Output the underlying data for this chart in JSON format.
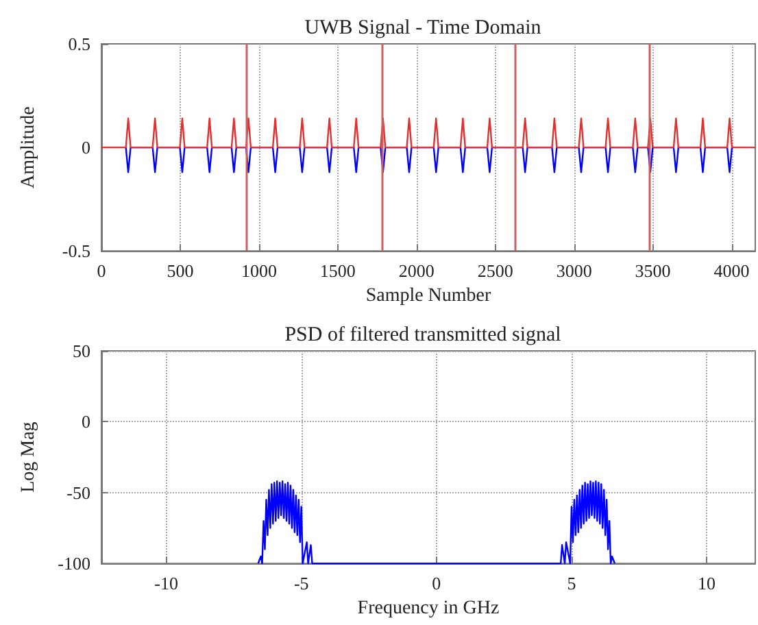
{
  "chart_data": [
    {
      "type": "line",
      "title": "UWB Signal - Time Domain",
      "xlabel": "Sample Number",
      "ylabel": "Amplitude",
      "xlim": [
        0,
        4150
      ],
      "ylim": [
        -0.5,
        0.5
      ],
      "xticks": [
        0,
        500,
        1000,
        1500,
        2000,
        2500,
        3000,
        3500,
        4000
      ],
      "yticks": [
        -0.5,
        0,
        0.5
      ],
      "grid": "x",
      "marker": "none",
      "line_style": "solid",
      "ref_lines": [
        {
          "axis": "x",
          "value": 918,
          "color": "#c86060"
        },
        {
          "axis": "x",
          "value": 1780,
          "color": "#c86060"
        },
        {
          "axis": "x",
          "value": 2624,
          "color": "#c86060"
        },
        {
          "axis": "x",
          "value": 3474,
          "color": "#c86060"
        }
      ],
      "series": [
        {
          "color": "#0000ff",
          "x": [
            155,
            170,
            185,
            325,
            340,
            355,
            498,
            513,
            528,
            671,
            686,
            701,
            826,
            841,
            856,
            918,
            933,
            948,
            1088,
            1103,
            1118,
            1259,
            1274,
            1289,
            1432,
            1447,
            1462,
            1602,
            1617,
            1632,
            1772,
            1787,
            1802,
            1938,
            1953,
            1968,
            2109,
            2124,
            2139,
            2279,
            2294,
            2309,
            2449,
            2464,
            2479,
            2674,
            2689,
            2704,
            2860,
            2875,
            2890,
            3030,
            3045,
            3060,
            3200,
            3215,
            3230,
            3373,
            3388,
            3403,
            3469,
            3484,
            3499,
            3632,
            3647,
            3662,
            3802,
            3817,
            3832,
            3972,
            3987,
            4002
          ],
          "values": [
            0,
            -0.12,
            0,
            0,
            -0.12,
            0,
            0,
            -0.12,
            0,
            0,
            -0.12,
            0,
            0,
            -0.12,
            0,
            0,
            -0.12,
            0,
            0,
            -0.12,
            0,
            0,
            -0.12,
            0,
            0,
            -0.12,
            0,
            0,
            -0.12,
            0,
            0,
            -0.12,
            0,
            0,
            -0.12,
            0,
            0,
            -0.12,
            0,
            0,
            -0.12,
            0,
            0,
            -0.12,
            0,
            0,
            -0.12,
            0,
            0,
            -0.12,
            0,
            0,
            -0.12,
            0,
            0,
            -0.12,
            0,
            0,
            -0.12,
            0,
            0,
            -0.12,
            0,
            0,
            -0.12,
            0,
            0,
            -0.12,
            0,
            0,
            -0.12,
            0
          ]
        },
        {
          "color": "#e03030",
          "x": [
            0,
            155,
            170,
            185,
            325,
            340,
            355,
            498,
            513,
            528,
            671,
            686,
            701,
            826,
            841,
            856,
            918,
            933,
            948,
            1088,
            1103,
            1118,
            1259,
            1274,
            1289,
            1432,
            1447,
            1462,
            1602,
            1617,
            1632,
            1772,
            1787,
            1802,
            1938,
            1953,
            1968,
            2109,
            2124,
            2139,
            2279,
            2294,
            2309,
            2449,
            2464,
            2479,
            2674,
            2689,
            2704,
            2860,
            2875,
            2890,
            3030,
            3045,
            3060,
            3200,
            3215,
            3230,
            3373,
            3388,
            3403,
            3469,
            3484,
            3499,
            3632,
            3647,
            3662,
            3802,
            3817,
            3832,
            3972,
            3987,
            4002,
            4150
          ],
          "values": [
            0,
            0,
            0.14,
            0,
            0,
            0.14,
            0,
            0,
            0.14,
            0,
            0,
            0.14,
            0,
            0,
            0.14,
            0,
            0,
            0.14,
            0,
            0,
            0.14,
            0,
            0,
            0.14,
            0,
            0,
            0.14,
            0,
            0,
            0.14,
            0,
            0,
            0.14,
            0,
            0,
            0.14,
            0,
            0,
            0.14,
            0,
            0,
            0.14,
            0,
            0,
            0.14,
            0,
            0,
            0.14,
            0,
            0,
            0.14,
            0,
            0,
            0.14,
            0,
            0,
            0.14,
            0,
            0,
            0.14,
            0,
            0,
            0.14,
            0,
            0,
            0.14,
            0,
            0,
            0.14,
            0,
            0,
            0.14,
            0,
            0
          ]
        }
      ]
    },
    {
      "type": "line",
      "title": "PSD of filtered transmitted signal",
      "xlabel": "Frequency in GHz",
      "ylabel": "Log Mag",
      "xlim": [
        -12.4,
        11.8
      ],
      "ylim": [
        -100,
        50
      ],
      "xticks": [
        -10,
        -5,
        0,
        5,
        10
      ],
      "yticks": [
        -100,
        -50,
        0,
        50
      ],
      "grid": true,
      "marker": "none",
      "line_style": "solid",
      "series": [
        {
          "color": "#0000ff",
          "x": [
            -6.6,
            -6.5,
            -6.45,
            -6.4,
            -6.35,
            -6.3,
            -6.25,
            -6.2,
            -6.15,
            -6.1,
            -6.05,
            -6.0,
            -5.95,
            -5.9,
            -5.85,
            -5.8,
            -5.75,
            -5.7,
            -5.65,
            -5.6,
            -5.55,
            -5.5,
            -5.45,
            -5.4,
            -5.35,
            -5.3,
            -5.25,
            -5.2,
            -5.15,
            -5.1,
            -5.05,
            -5.0,
            -4.95,
            -4.8,
            -4.75,
            -4.65,
            -4.6,
            4.6,
            4.65,
            4.75,
            4.8,
            4.95,
            5.0,
            5.05,
            5.1,
            5.15,
            5.2,
            5.25,
            5.3,
            5.35,
            5.4,
            5.45,
            5.5,
            5.55,
            5.6,
            5.65,
            5.7,
            5.75,
            5.8,
            5.85,
            5.9,
            5.95,
            6.0,
            6.05,
            6.1,
            6.15,
            6.2,
            6.25,
            6.3,
            6.35,
            6.4,
            6.45,
            6.5,
            6.6
          ],
          "values": [
            -100,
            -95,
            -100,
            -70,
            -90,
            -55,
            -80,
            -48,
            -75,
            -44,
            -72,
            -43,
            -70,
            -42,
            -68,
            -43,
            -66,
            -42,
            -68,
            -44,
            -70,
            -43,
            -72,
            -45,
            -75,
            -48,
            -78,
            -52,
            -80,
            -55,
            -85,
            -60,
            -100,
            -85,
            -100,
            -87,
            -100,
            -100,
            -87,
            -100,
            -85,
            -100,
            -60,
            -85,
            -55,
            -80,
            -52,
            -78,
            -48,
            -75,
            -45,
            -72,
            -43,
            -70,
            -44,
            -68,
            -42,
            -66,
            -43,
            -68,
            -42,
            -70,
            -43,
            -72,
            -44,
            -75,
            -48,
            -80,
            -55,
            -90,
            -70,
            -100,
            -95,
            -100
          ]
        }
      ]
    }
  ]
}
